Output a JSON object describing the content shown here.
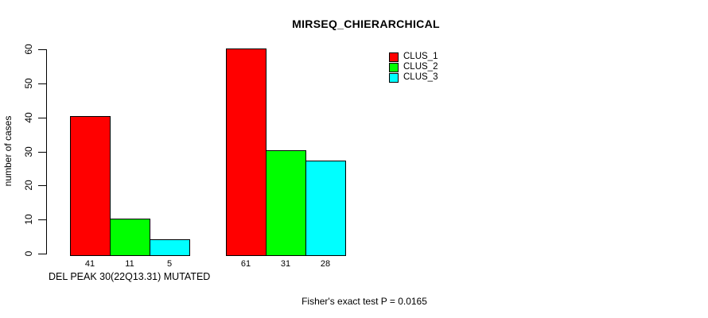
{
  "chart_data": {
    "type": "bar",
    "title": "MIRSEQ_CHIERARCHICAL",
    "ylabel": "number of cases",
    "xlabel": "DEL PEAK 30(22Q13.31) MUTATED",
    "annotation": "Fisher's exact test P = 0.0165",
    "ylim": [
      0,
      60
    ],
    "yticks": [
      0,
      10,
      20,
      30,
      40,
      50,
      60
    ],
    "grid": false,
    "legend_position": "top-right",
    "series": [
      {
        "name": "CLUS_1",
        "color": "#ff0000"
      },
      {
        "name": "CLUS_2",
        "color": "#00ff00"
      },
      {
        "name": "CLUS_3",
        "color": "#00ffff"
      }
    ],
    "groups": [
      {
        "values": [
          41,
          11,
          5
        ]
      },
      {
        "values": [
          61,
          31,
          28
        ]
      }
    ]
  },
  "colors": {
    "background": "#ffffff",
    "text": "#000000",
    "bar_border": "#000000",
    "axis": "#000000"
  }
}
